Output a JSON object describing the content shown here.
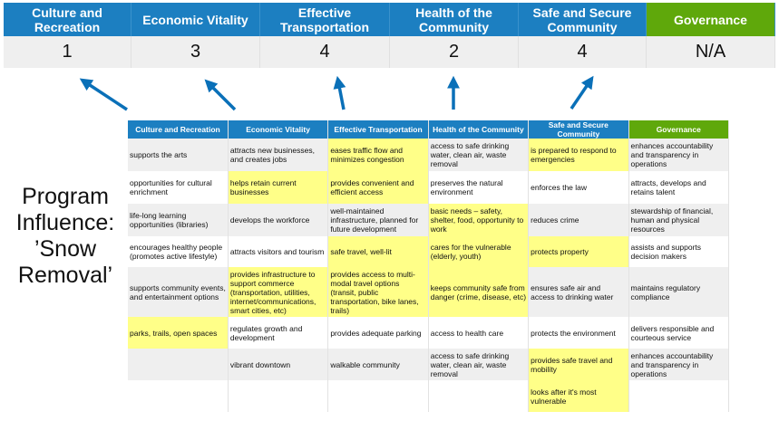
{
  "categories": [
    {
      "name": "Culture and Recreation",
      "short": "Culture and Recreation",
      "score": "1"
    },
    {
      "name": "Economic Vitality",
      "short": "Economic Vitality",
      "score": "3"
    },
    {
      "name": "Effective Transportation",
      "short": "Effective Transportation",
      "score": "4"
    },
    {
      "name": "Health of the Community",
      "short": "Health of the Community",
      "score": "2"
    },
    {
      "name": "Safe and Secure Community",
      "short": "Safe and Secure Community",
      "score": "4"
    },
    {
      "name": "Governance",
      "short": "Governance",
      "score": "N/A"
    }
  ],
  "colors": {
    "header_blue": "#1c7fc1",
    "governance_green": "#5fa80b",
    "highlight": "#ffff88",
    "arrow": "#0a70b8"
  },
  "program_label": "Program Influence: ’Snow Removal’",
  "rows": [
    [
      {
        "t": "supports the arts",
        "h": false
      },
      {
        "t": "attracts new businesses, and creates jobs",
        "h": false
      },
      {
        "t": "eases traffic flow and minimizes congestion",
        "h": true
      },
      {
        "t": "access to safe drinking water, clean air, waste removal",
        "h": false
      },
      {
        "t": "is prepared to respond to emergencies",
        "h": true
      },
      {
        "t": "enhances accountability and transparency in operations",
        "h": false
      }
    ],
    [
      {
        "t": "opportunities for cultural enrichment",
        "h": false
      },
      {
        "t": "helps retain current businesses",
        "h": true
      },
      {
        "t": "provides convenient and efficient access",
        "h": true
      },
      {
        "t": "preserves the natural environment",
        "h": false
      },
      {
        "t": "enforces the law",
        "h": false
      },
      {
        "t": "attracts, develops and retains talent",
        "h": false
      }
    ],
    [
      {
        "t": "life-long learning opportunities (libraries)",
        "h": false
      },
      {
        "t": "develops the workforce",
        "h": false
      },
      {
        "t": "well-maintained infrastructure, planned for future development",
        "h": false
      },
      {
        "t": "basic needs – safety, shelter, food, opportunity to work",
        "h": true
      },
      {
        "t": "reduces crime",
        "h": false
      },
      {
        "t": "stewardship of financial, human and physical resources",
        "h": false
      }
    ],
    [
      {
        "t": "encourages healthy people (promotes active lifestyle)",
        "h": false
      },
      {
        "t": "attracts visitors and tourism",
        "h": false
      },
      {
        "t": "safe travel, well-lit",
        "h": true
      },
      {
        "t": "cares for the vulnerable (elderly, youth)",
        "h": true
      },
      {
        "t": "protects property",
        "h": true
      },
      {
        "t": "assists and supports decision makers",
        "h": false
      }
    ],
    [
      {
        "t": "supports community events, and entertainment options",
        "h": false
      },
      {
        "t": "provides infrastructure to support commerce (transportation, utilities, internet/communications, smart cities, etc)",
        "h": true
      },
      {
        "t": "provides access to multi-modal travel options (transit, public transportation, bike lanes, trails)",
        "h": true
      },
      {
        "t": "keeps community safe from danger (crime, disease, etc)",
        "h": true
      },
      {
        "t": "ensures safe air and access to drinking water",
        "h": false
      },
      {
        "t": "maintains regulatory compliance",
        "h": false
      }
    ],
    [
      {
        "t": "parks, trails, open spaces",
        "h": true
      },
      {
        "t": "regulates growth and development",
        "h": false
      },
      {
        "t": "provides adequate parking",
        "h": false
      },
      {
        "t": "access to health care",
        "h": false
      },
      {
        "t": "protects the environment",
        "h": false
      },
      {
        "t": "delivers responsible and courteous service",
        "h": false
      }
    ],
    [
      {
        "t": "",
        "h": false
      },
      {
        "t": "vibrant downtown",
        "h": false
      },
      {
        "t": "walkable community",
        "h": false
      },
      {
        "t": "access to safe drinking water, clean air, waste removal",
        "h": false
      },
      {
        "t": "provides safe travel and mobility",
        "h": true
      },
      {
        "t": "enhances accountability and transparency in operations",
        "h": false
      }
    ],
    [
      {
        "t": "",
        "h": false
      },
      {
        "t": "",
        "h": false
      },
      {
        "t": "",
        "h": false
      },
      {
        "t": "",
        "h": false
      },
      {
        "t": "looks after it's most vulnerable",
        "h": true
      },
      {
        "t": "",
        "h": false
      }
    ]
  ]
}
